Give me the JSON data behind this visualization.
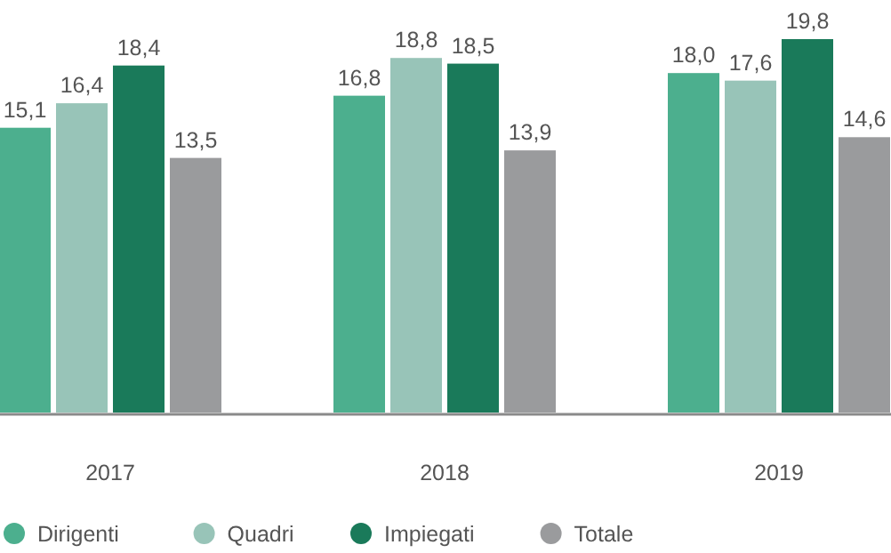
{
  "chart_data": {
    "type": "bar",
    "categories": [
      "2017",
      "2018",
      "2019"
    ],
    "series": [
      {
        "name": "Dirigenti",
        "color": "#4caf8e",
        "values": [
          15.1,
          16.8,
          18.0
        ],
        "value_labels": [
          "15,1",
          "16,8",
          "18,0"
        ]
      },
      {
        "name": "Quadri",
        "color": "#98c4b8",
        "values": [
          16.4,
          18.8,
          17.6
        ],
        "value_labels": [
          "16,4",
          "18,8",
          "17,6"
        ]
      },
      {
        "name": "Impiegati",
        "color": "#1a7a5a",
        "values": [
          18.4,
          18.5,
          19.8
        ],
        "value_labels": [
          "18,4",
          "18,5",
          "19,8"
        ]
      },
      {
        "name": "Totale",
        "color": "#9a9b9d",
        "values": [
          13.5,
          13.9,
          14.6
        ],
        "value_labels": [
          "13,5",
          "13,9",
          "14,6"
        ]
      }
    ],
    "legend": "bottom"
  }
}
